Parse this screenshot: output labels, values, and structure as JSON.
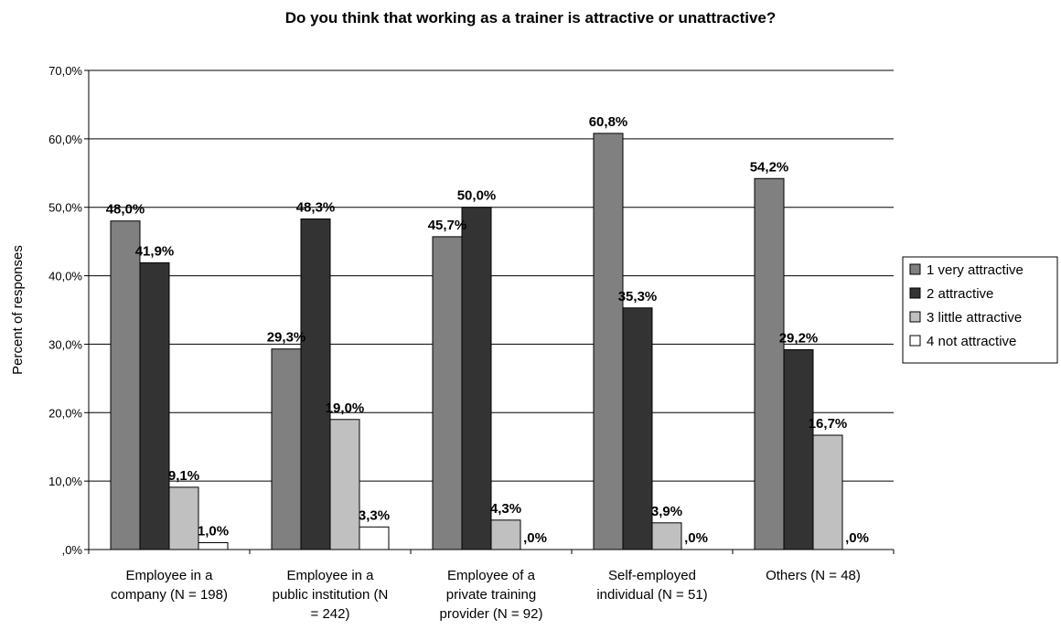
{
  "chart_data": {
    "type": "bar",
    "title": "Do you think that working as a trainer is attractive or unattractive?",
    "ylabel": "Percent of responses",
    "xlabel": "",
    "ylim": [
      0,
      70
    ],
    "yticks": [
      ",0%",
      "10,0%",
      "20,0%",
      "30,0%",
      "40,0%",
      "50,0%",
      "60,0%",
      "70,0%"
    ],
    "grid": true,
    "legend_position": "right",
    "categories": [
      [
        "Employee in a",
        "company (N = 198)"
      ],
      [
        "Employee in a",
        "public institution (N",
        "= 242)"
      ],
      [
        "Employee of a",
        "private training",
        "provider (N = 92)"
      ],
      [
        "Self-employed",
        "individual (N = 51)"
      ],
      [
        "Others (N = 48)"
      ]
    ],
    "series": [
      {
        "name": "1 very attractive",
        "color": "#808080",
        "values": [
          48.0,
          29.3,
          45.7,
          60.8,
          54.2
        ],
        "labels": [
          "48,0%",
          "29,3%",
          "45,7%",
          "60,8%",
          "54,2%"
        ]
      },
      {
        "name": "2 attractive",
        "color": "#333333",
        "values": [
          41.9,
          48.3,
          50.0,
          35.3,
          29.2
        ],
        "labels": [
          "41,9%",
          "48,3%",
          "50,0%",
          "35,3%",
          "29,2%"
        ]
      },
      {
        "name": "3 little attractive",
        "color": "#c0c0c0",
        "values": [
          9.1,
          19.0,
          4.3,
          3.9,
          16.7
        ],
        "labels": [
          "9,1%",
          "19,0%",
          "4,3%",
          "3,9%",
          "16,7%"
        ]
      },
      {
        "name": "4 not attractive",
        "color": "#ffffff",
        "values": [
          1.0,
          3.3,
          0.0,
          0.0,
          0.0
        ],
        "labels": [
          "1,0%",
          "3,3%",
          ",0%",
          ",0%",
          ",0%"
        ]
      }
    ]
  }
}
